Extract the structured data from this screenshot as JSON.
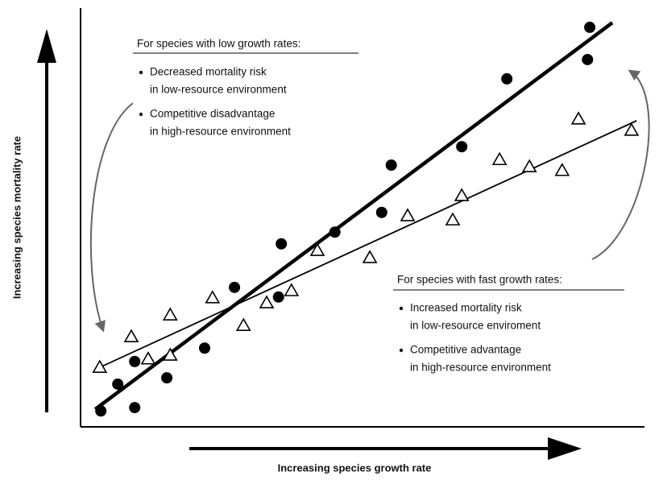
{
  "chart_data": {
    "type": "scatter",
    "x_label": "Increasing species growth rate",
    "y_label": "Increasing species mortality rate",
    "xlim": [
      0,
      100
    ],
    "ylim": [
      0,
      100
    ],
    "series": [
      {
        "marker": "circle",
        "color": "#000000",
        "x": [
          3.6,
          9.6,
          6.6,
          9.6,
          15.3,
          22,
          27.3,
          35.6,
          35.1,
          45.1,
          53.4,
          55.1,
          67.6,
          75.6,
          89.9,
          90.3
        ],
        "values": [
          3.8,
          4.6,
          10.2,
          15.6,
          11.7,
          18.8,
          33.3,
          43.7,
          31,
          46.5,
          51.2,
          62.5,
          66.9,
          83.1,
          87.7,
          95.4
        ]
      },
      {
        "marker": "triangle",
        "color": "#000000",
        "x": [
          3.4,
          9,
          12,
          15.9,
          15.9,
          23.4,
          28.9,
          33,
          37.4,
          42,
          51.3,
          58,
          66,
          67.6,
          74.3,
          79.6,
          85.4,
          88.3,
          97.7
        ],
        "values": [
          14.2,
          21.5,
          16.2,
          26.7,
          17.1,
          30.8,
          24.2,
          29.6,
          32.5,
          42.1,
          40.4,
          50.4,
          49.4,
          55.2,
          63.8,
          62.1,
          61.2,
          73.5,
          70.8
        ]
      }
    ],
    "trend_lines": [
      {
        "color": "#000000",
        "width": 4.5,
        "x": [
          2.6,
          94.3
        ],
        "values": [
          4.2,
          96.5
        ]
      },
      {
        "color": "#000000",
        "width": 1.8,
        "x": [
          3.4,
          98.6
        ],
        "values": [
          14.2,
          73.1
        ]
      }
    ],
    "annotations": [
      {
        "title": "For species with low growth rates:",
        "bullets": [
          [
            "Decreased mortality risk",
            "in low-resource environment"
          ],
          [
            "Competitive disadvantage",
            "in high-resource environment"
          ]
        ]
      },
      {
        "title": "For species with fast growth rates:",
        "bullets": [
          [
            "Increased mortality risk",
            "in low-resource enviroment"
          ],
          [
            "Competitive advantage",
            "in high-resource environment"
          ]
        ]
      }
    ]
  }
}
